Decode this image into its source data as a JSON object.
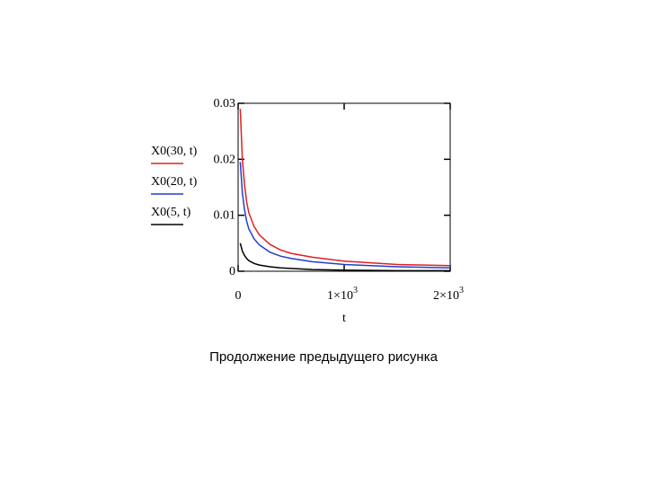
{
  "chart_data": {
    "type": "line",
    "xlabel": "t",
    "ylabel": "",
    "xlim": [
      0,
      2000
    ],
    "ylim": [
      0,
      0.03
    ],
    "grid": false,
    "legend_position": "left",
    "x_ticks": [
      {
        "value": 0,
        "mantissa": "0",
        "exp": ""
      },
      {
        "value": 1000,
        "mantissa": "1×10",
        "exp": "3"
      },
      {
        "value": 2000,
        "mantissa": "2×10",
        "exp": "3"
      }
    ],
    "y_ticks": [
      {
        "value": 0,
        "label": "0"
      },
      {
        "value": 0.01,
        "label": "0.01"
      },
      {
        "value": 0.02,
        "label": "0.02"
      },
      {
        "value": 0.03,
        "label": "0.03"
      }
    ],
    "series": [
      {
        "name": "X0(30, t)",
        "color": "#e02020",
        "x": [
          20,
          40,
          60,
          80,
          100,
          150,
          200,
          300,
          400,
          500,
          700,
          1000,
          1500,
          2000
        ],
        "y": [
          0.029,
          0.02,
          0.0155,
          0.0125,
          0.0105,
          0.008,
          0.0065,
          0.0048,
          0.0038,
          0.0032,
          0.0025,
          0.0018,
          0.0012,
          0.001
        ]
      },
      {
        "name": "X0(20, t)",
        "color": "#1f3fd0",
        "x": [
          20,
          40,
          60,
          80,
          100,
          150,
          200,
          300,
          400,
          500,
          700,
          1000,
          1500,
          2000
        ],
        "y": [
          0.0195,
          0.014,
          0.011,
          0.009,
          0.0076,
          0.0058,
          0.0047,
          0.0034,
          0.0027,
          0.0023,
          0.0017,
          0.0012,
          0.0008,
          0.0006
        ]
      },
      {
        "name": "X0(5, t)",
        "color": "#000000",
        "x": [
          20,
          40,
          60,
          80,
          100,
          150,
          200,
          300,
          400,
          500,
          700,
          1000,
          1500,
          2000
        ],
        "y": [
          0.005,
          0.0036,
          0.0028,
          0.0023,
          0.0019,
          0.0014,
          0.0011,
          0.0008,
          0.0006,
          0.0005,
          0.0003,
          0.0002,
          0.0001,
          0.0001
        ]
      }
    ]
  },
  "caption": "Продолжение предыдущего рисунка"
}
